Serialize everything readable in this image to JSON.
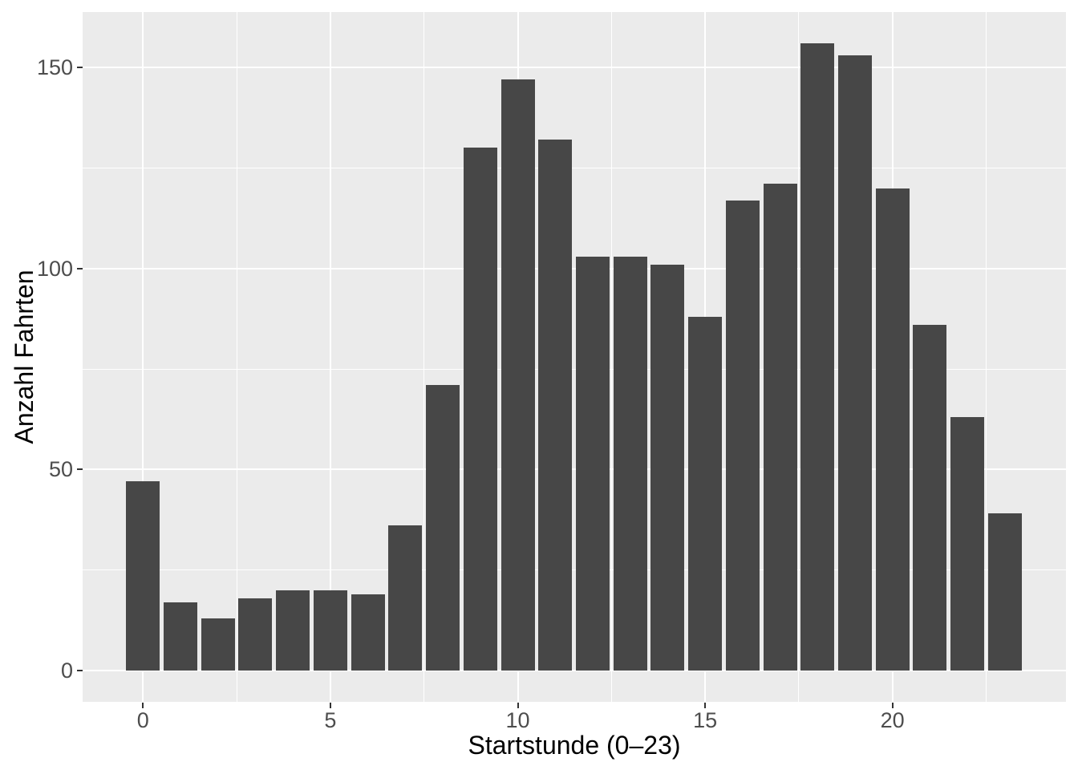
{
  "chart_data": {
    "type": "bar",
    "title": "",
    "xlabel": "Startstunde (0–23)",
    "ylabel": "Anzahl Fahrten",
    "categories": [
      0,
      1,
      2,
      3,
      4,
      5,
      6,
      7,
      8,
      9,
      10,
      11,
      12,
      13,
      14,
      15,
      16,
      17,
      18,
      19,
      20,
      21,
      22,
      23
    ],
    "values": [
      47,
      17,
      13,
      18,
      20,
      20,
      19,
      36,
      71,
      130,
      147,
      132,
      103,
      103,
      101,
      88,
      117,
      121,
      156,
      153,
      120,
      86,
      63,
      39
    ],
    "x_ticks": [
      0,
      5,
      10,
      15,
      20
    ],
    "x_minor_ticks": [
      2.5,
      7.5,
      12.5,
      17.5,
      22.5
    ],
    "y_ticks": [
      0,
      50,
      100,
      150
    ],
    "y_minor_ticks": [
      25,
      75,
      125
    ],
    "ylim": [
      -7.8,
      163.8
    ],
    "bar_rel_width": 0.9,
    "grid": "white major and minor gridlines on gray panel",
    "legend": "none",
    "colors": {
      "bar_fill": "#474747",
      "panel_background": "#EBEBEB",
      "gridline": "#FFFFFF",
      "tick_label": "#4D4D4D",
      "axis_title": "#000000",
      "tick_mark": "#333333",
      "figure_background": "#FFFFFF"
    }
  }
}
